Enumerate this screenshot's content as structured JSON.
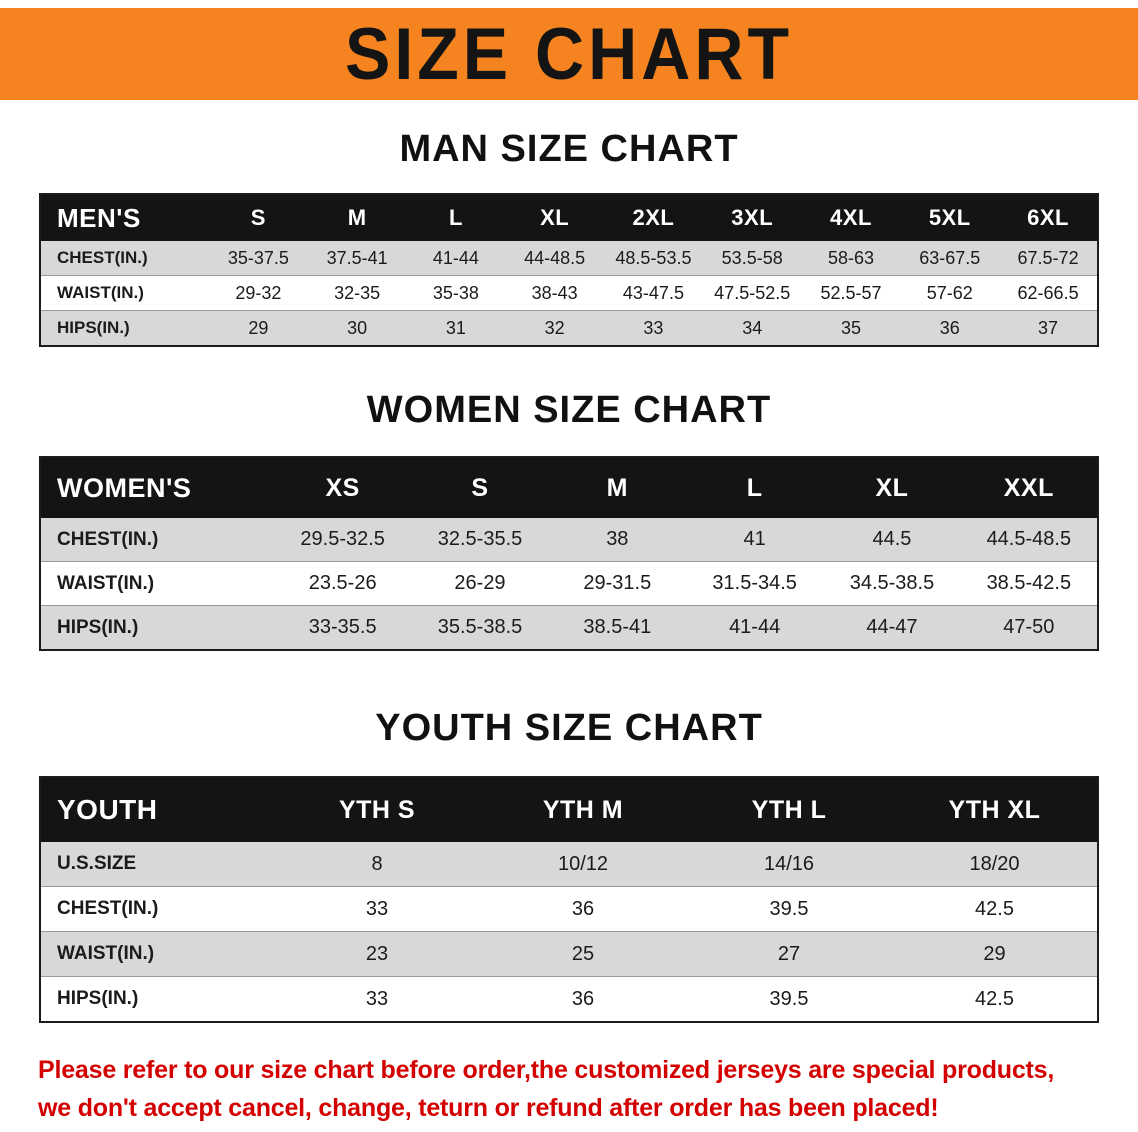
{
  "banner": {
    "title": "SIZE CHART"
  },
  "men": {
    "heading": "MAN SIZE CHART",
    "table": {
      "header": [
        "MEN'S",
        "S",
        "M",
        "L",
        "XL",
        "2XL",
        "3XL",
        "4XL",
        "5XL",
        "6XL"
      ],
      "rows": [
        [
          "CHEST(IN.)",
          "35-37.5",
          "37.5-41",
          "41-44",
          "44-48.5",
          "48.5-53.5",
          "53.5-58",
          "58-63",
          "63-67.5",
          "67.5-72"
        ],
        [
          "WAIST(IN.)",
          "29-32",
          "32-35",
          "35-38",
          "38-43",
          "43-47.5",
          "47.5-52.5",
          "52.5-57",
          "57-62",
          "62-66.5"
        ],
        [
          "HIPS(IN.)",
          "29",
          "30",
          "31",
          "32",
          "33",
          "34",
          "35",
          "36",
          "37"
        ]
      ]
    }
  },
  "women": {
    "heading": "WOMEN SIZE CHART",
    "table": {
      "header": [
        "WOMEN'S",
        "XS",
        "S",
        "M",
        "L",
        "XL",
        "XXL"
      ],
      "rows": [
        [
          "CHEST(IN.)",
          "29.5-32.5",
          "32.5-35.5",
          "38",
          "41",
          "44.5",
          "44.5-48.5"
        ],
        [
          "WAIST(IN.)",
          "23.5-26",
          "26-29",
          "29-31.5",
          "31.5-34.5",
          "34.5-38.5",
          "38.5-42.5"
        ],
        [
          "HIPS(IN.)",
          "33-35.5",
          "35.5-38.5",
          "38.5-41",
          "41-44",
          "44-47",
          "47-50"
        ]
      ]
    }
  },
  "youth": {
    "heading": "YOUTH SIZE CHART",
    "table": {
      "header": [
        "YOUTH",
        "YTH S",
        "YTH M",
        "YTH L",
        "YTH XL"
      ],
      "rows": [
        [
          "U.S.SIZE",
          "8",
          "10/12",
          "14/16",
          "18/20"
        ],
        [
          "CHEST(IN.)",
          "33",
          "36",
          "39.5",
          "42.5"
        ],
        [
          "WAIST(IN.)",
          "23",
          "25",
          "27",
          "29"
        ],
        [
          "HIPS(IN.)",
          "33",
          "36",
          "39.5",
          "42.5"
        ]
      ]
    }
  },
  "footer": {
    "line1": "Please refer to our size chart before order,the customized jerseys are special products,",
    "line2": "we don't accept cancel, change, teturn or refund after order has been placed!"
  },
  "colors": {
    "banner_bg": "#f5831f",
    "header_bg": "#141414",
    "stripe": "#d8d8d8",
    "footer_text": "#d40000"
  }
}
